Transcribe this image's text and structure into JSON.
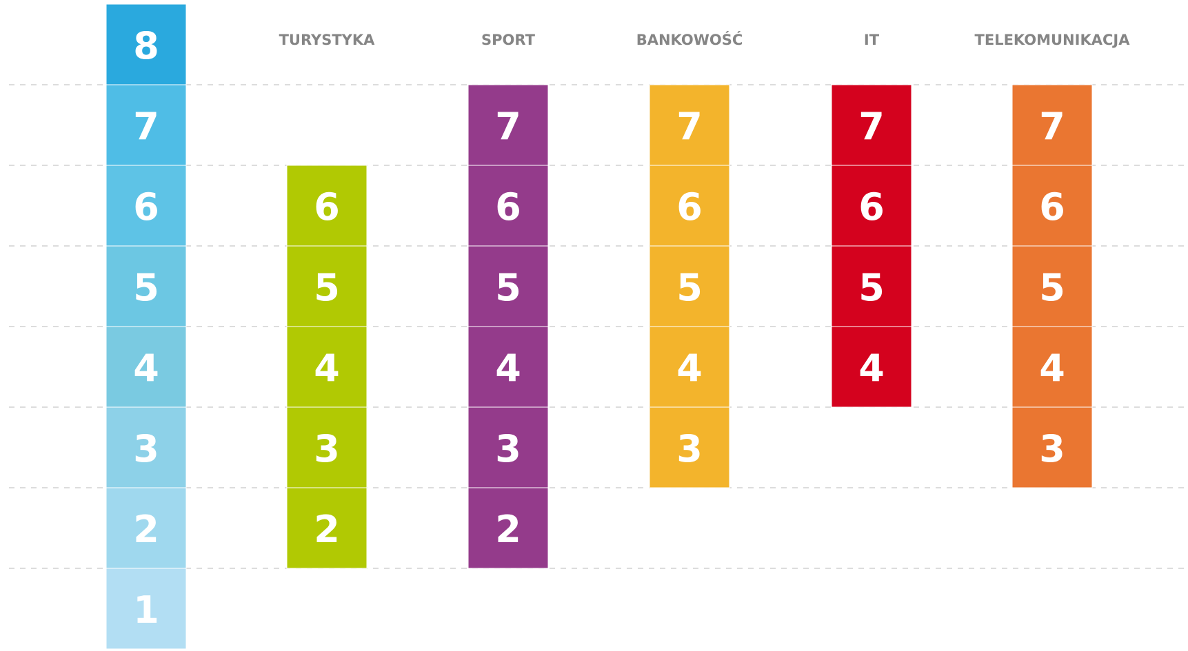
{
  "scale": {
    "levels": [
      1,
      2,
      3,
      4,
      5,
      6,
      7,
      8
    ],
    "colors": [
      "#b2def3",
      "#9fd8ee",
      "#8dd1e8",
      "#7acae1",
      "#6cc7e3",
      "#5ec3e6",
      "#4fbde6",
      "#2aa9de"
    ]
  },
  "columns": [
    {
      "name": "TURYSTYKA",
      "color": "#b1c903",
      "levels": [
        2,
        3,
        4,
        5,
        6
      ]
    },
    {
      "name": "SPORT",
      "color": "#943b8b",
      "levels": [
        2,
        3,
        4,
        5,
        6,
        7
      ]
    },
    {
      "name": "BANKOWOŚĆ",
      "color": "#f3b42c",
      "levels": [
        3,
        4,
        5,
        6,
        7
      ]
    },
    {
      "name": "IT",
      "color": "#d4021e",
      "levels": [
        4,
        5,
        6,
        7
      ]
    },
    {
      "name": "TELEKOMUNIKACJA",
      "color": "#ea7631",
      "levels": [
        3,
        4,
        5,
        6,
        7
      ]
    }
  ]
}
